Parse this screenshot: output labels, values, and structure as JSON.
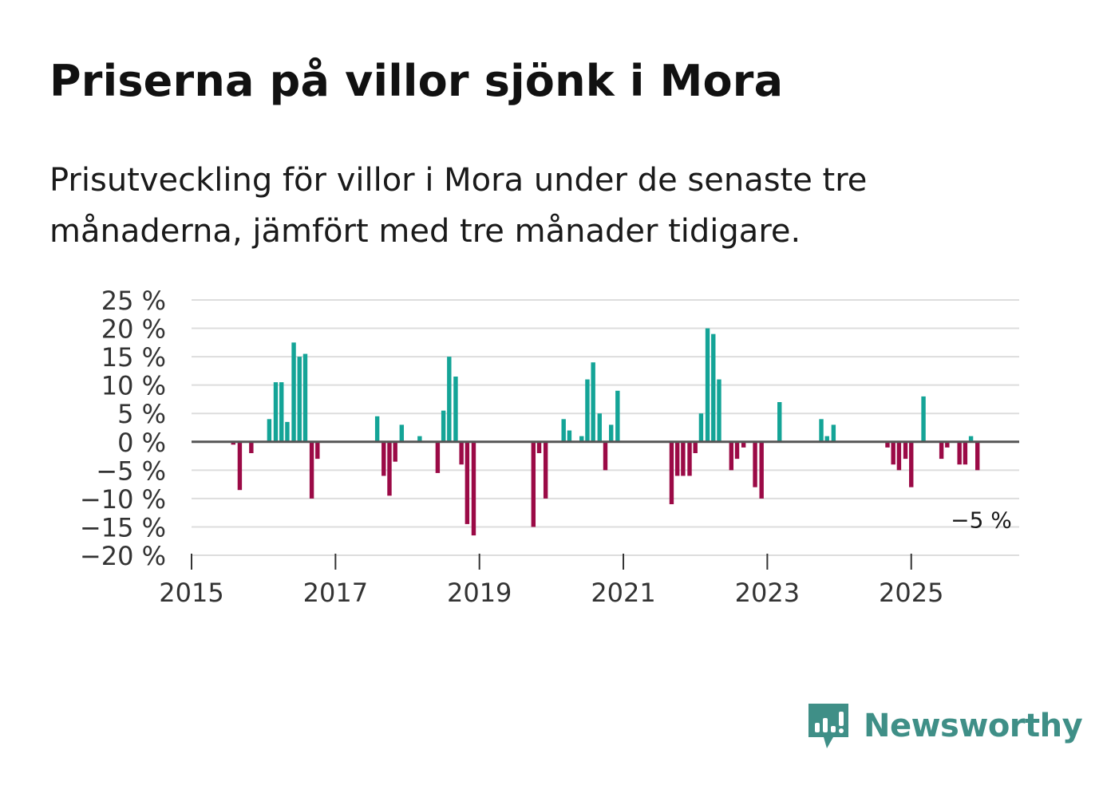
{
  "title": "Priserna på villor sjönk i Mora",
  "subtitle": "Prisutveckling för villor i Mora under de senaste tre månaderna, jämfört med tre månader tidigare.",
  "brand": {
    "name": "Newsworthy",
    "color": "#3f8f87",
    "icon": "newsworthy-chart-bubble-icon"
  },
  "colors": {
    "positive": "#14a497",
    "negative": "#9b0a46",
    "grid": "#dddddd",
    "zero": "#555555"
  },
  "chart_data": {
    "type": "bar",
    "title": "Priserna på villor sjönk i Mora",
    "xlabel": "",
    "ylabel": "",
    "ylim": [
      -20,
      25
    ],
    "xlim": [
      2015.0,
      2026.5
    ],
    "y_ticks": [
      25,
      20,
      15,
      10,
      5,
      0,
      -5,
      -10,
      -15,
      -20
    ],
    "y_tick_labels": [
      "25 %",
      "20 %",
      "15 %",
      "10 %",
      "5 %",
      "0 %",
      "−5 %",
      "−10 %",
      "−15 %",
      "−20 %"
    ],
    "x_ticks": [
      2015,
      2017,
      2019,
      2021,
      2023,
      2025
    ],
    "x_tick_labels": [
      "2015",
      "2017",
      "2019",
      "2021",
      "2023",
      "2025"
    ],
    "annotation": {
      "label": "−5 %",
      "x": 2026.0,
      "y": -5
    },
    "x": [
      2015.58,
      2015.67,
      2015.83,
      2016.08,
      2016.17,
      2016.25,
      2016.33,
      2016.42,
      2016.5,
      2016.58,
      2016.67,
      2016.75,
      2017.58,
      2017.67,
      2017.75,
      2017.83,
      2017.92,
      2018.17,
      2018.42,
      2018.5,
      2018.58,
      2018.67,
      2018.75,
      2018.83,
      2018.92,
      2019.75,
      2019.83,
      2019.92,
      2020.17,
      2020.25,
      2020.42,
      2020.5,
      2020.58,
      2020.67,
      2020.75,
      2020.83,
      2020.92,
      2021.67,
      2021.75,
      2021.83,
      2021.92,
      2022.0,
      2022.08,
      2022.17,
      2022.25,
      2022.33,
      2022.5,
      2022.58,
      2022.67,
      2022.83,
      2022.92,
      2023.17,
      2023.75,
      2023.83,
      2023.92,
      2024.67,
      2024.75,
      2024.83,
      2024.92,
      2025.0,
      2025.17,
      2025.42,
      2025.5,
      2025.67,
      2025.75,
      2025.83,
      2025.92
    ],
    "values": [
      -0.5,
      -8.5,
      -2,
      4,
      10.5,
      10.5,
      3.5,
      17.5,
      15,
      15.5,
      -10,
      -3,
      4.5,
      -6,
      -9.5,
      -3.5,
      3,
      1,
      -5.5,
      5.5,
      15,
      11.5,
      -4,
      -14.5,
      -16.5,
      -15,
      -2,
      -10,
      4,
      2,
      1,
      11,
      14,
      5,
      -5,
      3,
      9,
      -11,
      -6,
      -6,
      -6,
      -2,
      5,
      20,
      19,
      11,
      -5,
      -3,
      -1,
      -8,
      -10,
      7,
      4,
      1,
      3,
      -1,
      -4,
      -5,
      -3,
      -8,
      8,
      -3,
      -1,
      -4,
      -4,
      1,
      -5
    ]
  }
}
